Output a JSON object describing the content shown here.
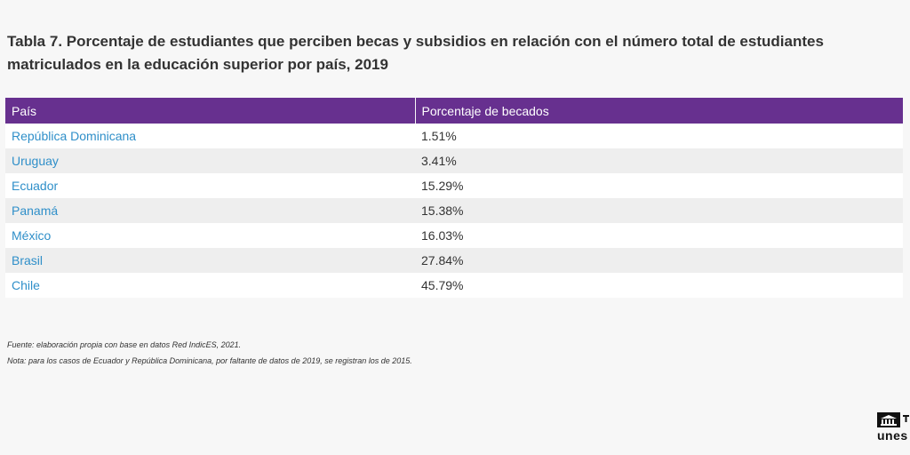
{
  "title": "Tabla 7. Porcentaje de estudiantes que perciben becas y subsidios en relación con el número total de estudiantes matriculados en la educación superior por país, 2019",
  "chart_data": {
    "type": "table",
    "columns": [
      "País",
      "Porcentaje de becados"
    ],
    "rows": [
      {
        "country": "República Dominicana",
        "value": "1.51%"
      },
      {
        "country": "Uruguay",
        "value": "3.41%"
      },
      {
        "country": "Ecuador",
        "value": "15.29%"
      },
      {
        "country": "Panamá",
        "value": "15.38%"
      },
      {
        "country": "México",
        "value": "16.03%"
      },
      {
        "country": "Brasil",
        "value": "27.84%"
      },
      {
        "country": "Chile",
        "value": "45.79%"
      }
    ],
    "header_color": "#67308f",
    "link_color": "#2f8fc9"
  },
  "notes": {
    "source": "Fuente: elaboración propia con base en datos Red IndicES, 2021.",
    "note": "Nota: para los casos de Ecuador y República Dominicana, por faltante de datos de 2019, se registran los de 2015."
  },
  "logo": {
    "text": "unes",
    "icon": "unesco-temple-icon"
  }
}
